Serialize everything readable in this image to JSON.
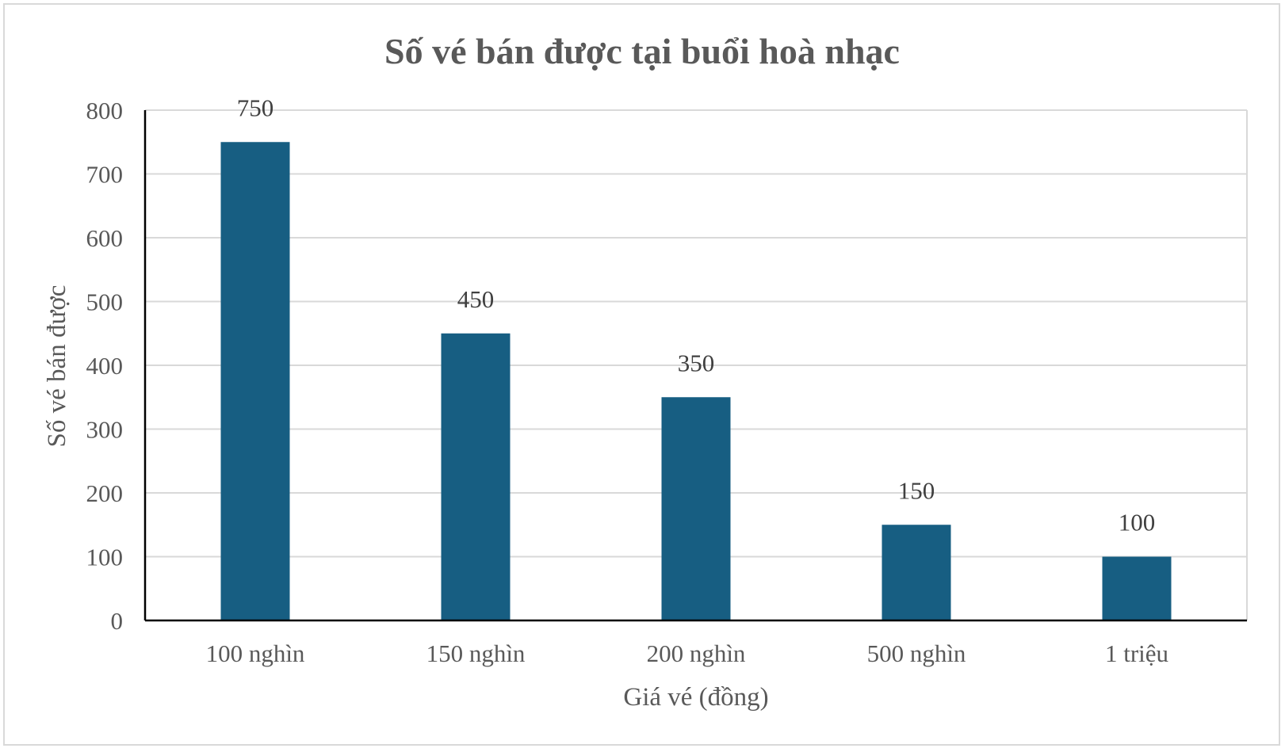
{
  "chart_data": {
    "type": "bar",
    "title": "Số vé bán được tại buổi hoà nhạc",
    "xlabel": "Giá vé (đồng)",
    "ylabel": "Số vé bán được",
    "categories": [
      "100 nghìn",
      "150 nghìn",
      "200 nghìn",
      "500 nghìn",
      "1 triệu"
    ],
    "values": [
      750,
      450,
      350,
      150,
      100
    ],
    "data_labels": [
      "750",
      "450",
      "350",
      "150",
      "100"
    ],
    "ylim": [
      0,
      800
    ],
    "yticks": [
      0,
      100,
      200,
      300,
      400,
      500,
      600,
      700,
      800
    ],
    "grid": true,
    "legend": "none",
    "bar_color": "#175e82",
    "grid_color": "#d9d9d9",
    "axis_color": "#000000",
    "text_color": "#595959"
  }
}
